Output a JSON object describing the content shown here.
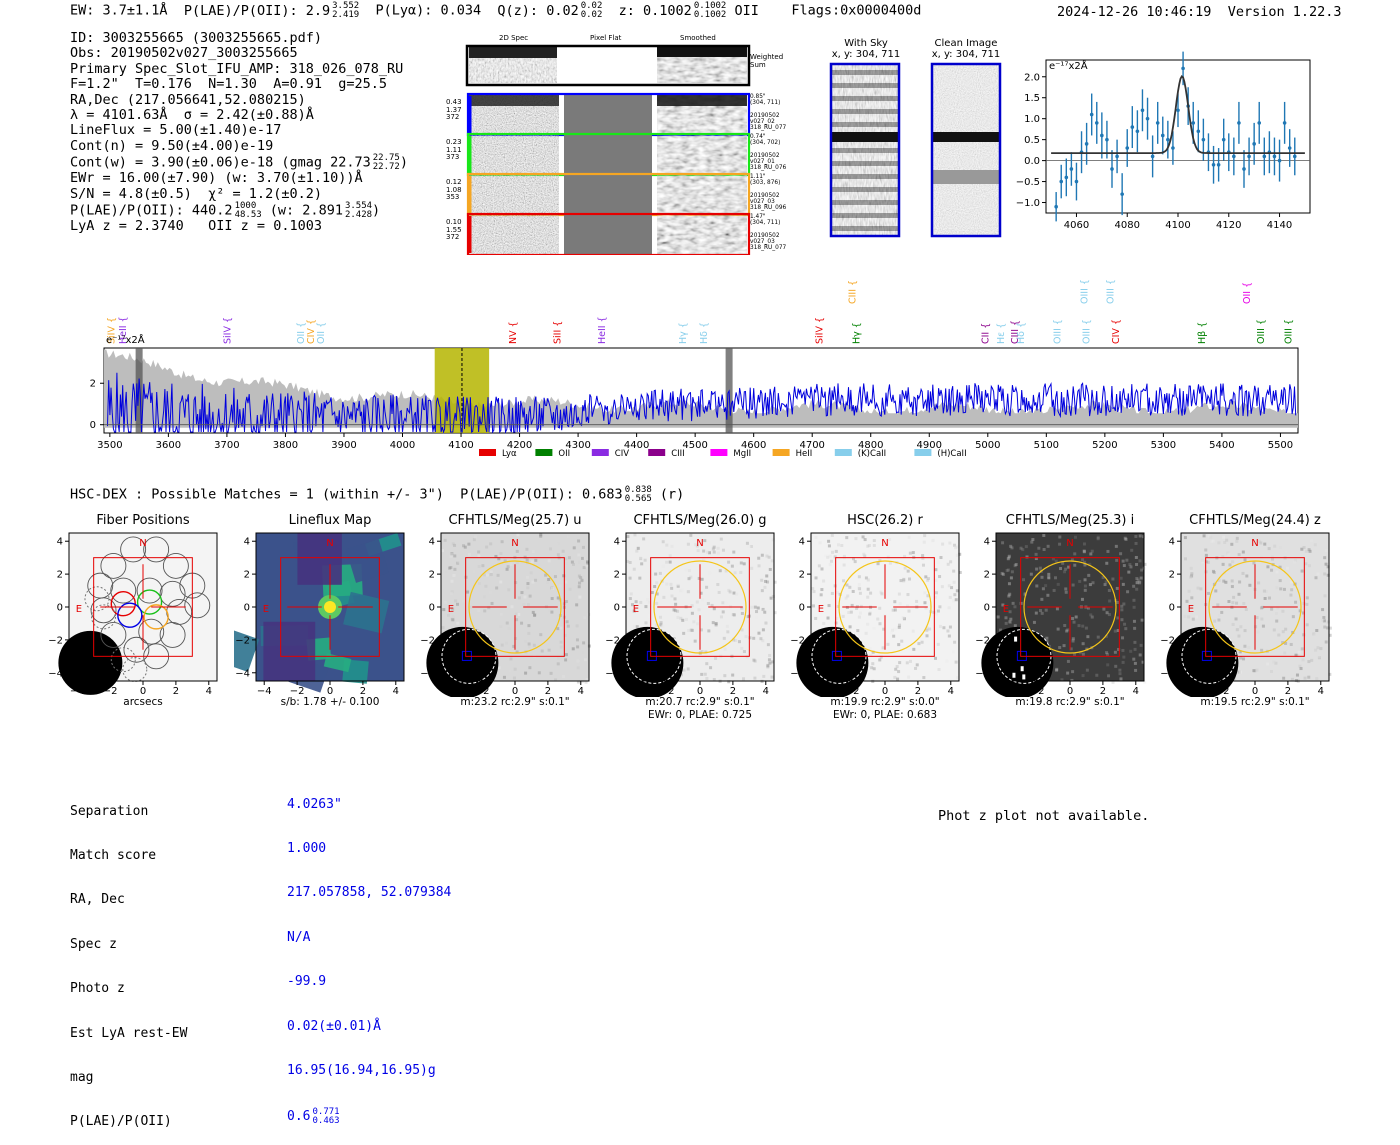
{
  "header": {
    "ew": "EW: 3.7±1.1Å",
    "plae_label": "P(LAE)/P(OII): 2.9",
    "plae_hi": "3.552",
    "plae_lo": "2.419",
    "plya": "P(Lyα): 0.034",
    "qz_label": "Q(z): 0.02",
    "qz_hi": "0.02",
    "qz_lo": "0.02",
    "z_label": "z: 0.1002",
    "z_hi": "0.1002",
    "z_lo": "0.1002",
    "z_line": "OII",
    "flags": "Flags:0x0000400d",
    "datetime": "2024-12-26 10:46:19",
    "version": "Version 1.22.3"
  },
  "info": {
    "id": "ID: 3003255665 (3003255665.pdf)",
    "obs": "Obs: 20190502v027_3003255665",
    "primary": "Primary Spec_Slot_IFU_AMP: 318_026_078_RU",
    "params": "F=1.2\"  T=0.176  N=1.30  A=0.91  g=25.5",
    "radec": "RA,Dec (217.056641,52.080215)",
    "lambda": "λ = 4101.63Å  σ = 2.42(±0.88)Å",
    "lineflux": "LineFlux = 5.00(±1.40)e-17",
    "contn": "Cont(n) = 9.50(±4.00)e-19",
    "contw": "Cont(w) = 3.90(±0.06)e-18 (gmag 22.73",
    "contw_hi": "22.75",
    "contw_lo": "22.72",
    "ewr": "EWr = 16.00(±7.90) (w: 3.70(±1.10))Å",
    "sn": "S/N = 4.8(±0.5)  χ² = 1.2(±0.2)",
    "plae": "P(LAE)/P(OII): 440.2",
    "plae_hi": "1000",
    "plae_lo": "48.53",
    "plae_w": "(w: 2.891",
    "plae_w_hi": "3.554",
    "plae_w_lo": "2.428",
    "lya": "LyA z = 2.3740   OII z = 0.1003"
  },
  "cutouts": {
    "col_headers": [
      "2D Spec",
      "Pixel Flat",
      "Smoothed"
    ],
    "weighted_sum": "Weighted\nSum",
    "rows": [
      {
        "left": "0.43\n1.37\n372",
        "right": "0.85\"\n(304, 711)\n\n20190502\nv027_02\n318_RU_077",
        "color": "#0000ff"
      },
      {
        "left": "0.23\n1.11\n373",
        "right": "0.74\"\n(304, 702)\n\n20190502\nv027_01\n318_RU_076",
        "color": "#19e619"
      },
      {
        "left": "0.12\n1.08\n353",
        "right": "1.11\"\n(303, 876)\n\n20190502\nv027_03\n318_RU_096",
        "color": "#f5a623"
      },
      {
        "left": "0.10\n1.55\n372",
        "right": "1.47\"\n(304, 711)\n\n20190502\nv027_03\n318_RU_077",
        "color": "#e60000"
      }
    ]
  },
  "ccd": {
    "with_sky": "With Sky",
    "clean": "Clean Image",
    "coord": "x, y: 304, 711"
  },
  "linefit": {
    "unit": "e⁻¹⁷x2Å",
    "x": [
      4052,
      4054,
      4056,
      4058,
      4060,
      4062,
      4064,
      4066,
      4068,
      4070,
      4072,
      4074,
      4076,
      4078,
      4080,
      4082,
      4084,
      4086,
      4088,
      4090,
      4092,
      4094,
      4096,
      4098,
      4100,
      4102,
      4104,
      4106,
      4108,
      4110,
      4112,
      4114,
      4116,
      4118,
      4120,
      4122,
      4124,
      4126,
      4128,
      4130,
      4132,
      4134,
      4136,
      4138,
      4140,
      4142,
      4144,
      4146
    ],
    "y": [
      -1.1,
      -0.5,
      -0.4,
      -0.2,
      -0.5,
      0.2,
      0.4,
      1.1,
      0.9,
      0.6,
      0.5,
      -0.2,
      0.1,
      -0.8,
      0.3,
      0.8,
      0.7,
      1.2,
      1.0,
      0.1,
      0.9,
      0.6,
      0.5,
      0.3,
      1.2,
      2.2,
      1.3,
      0.9,
      0.7,
      0.5,
      0.2,
      -0.1,
      -0.1,
      0.5,
      0.2,
      0.1,
      0.9,
      -0.2,
      0.1,
      0.4,
      0.9,
      0.1,
      0.2,
      0.1,
      0.0,
      0.9,
      0.3,
      0.1
    ],
    "err": [
      0.35,
      0.4,
      0.45,
      0.4,
      0.45,
      0.5,
      0.5,
      0.5,
      0.5,
      0.55,
      0.45,
      0.45,
      0.4,
      0.5,
      0.45,
      0.5,
      0.5,
      0.5,
      0.5,
      0.5,
      0.5,
      0.45,
      0.45,
      0.4,
      0.4,
      0.4,
      0.45,
      0.5,
      0.5,
      0.5,
      0.45,
      0.45,
      0.4,
      0.5,
      0.45,
      0.45,
      0.5,
      0.45,
      0.45,
      0.5,
      0.5,
      0.45,
      0.5,
      0.45,
      0.5,
      0.5,
      0.45,
      0.45
    ],
    "model": {
      "continuum": 0.18,
      "peak": 1.83,
      "center": 4101.6,
      "sigma": 2.42
    },
    "xlim": [
      4048,
      4152
    ],
    "ylim": [
      -1.25,
      2.4
    ],
    "xticks": [
      4060,
      4080,
      4100,
      4120,
      4140
    ],
    "yticks": [
      "2.0",
      "1.5",
      "1.0",
      "0.5",
      "0.0",
      "−0.5",
      "−1.0"
    ],
    "ytick_values": [
      2.0,
      1.5,
      1.0,
      0.5,
      0.0,
      -0.5,
      -1.0
    ]
  },
  "fullspec": {
    "unit": "e⁻¹⁷x2Å",
    "xlim": [
      3490,
      5530
    ],
    "ylim": [
      -0.4,
      3.7
    ],
    "xticks": [
      "3500",
      "3600",
      "3700",
      "3800",
      "3900",
      "4000",
      "4100",
      "4200",
      "4300",
      "4400",
      "4500",
      "4600",
      "4700",
      "4800",
      "4900",
      "5000",
      "5100",
      "5200",
      "5300",
      "5400",
      "5500"
    ],
    "xtick_values": [
      3500,
      3600,
      3700,
      3800,
      3900,
      4000,
      4100,
      4200,
      4300,
      4400,
      4500,
      4600,
      4700,
      4800,
      4900,
      5000,
      5100,
      5200,
      5300,
      5400,
      5500
    ],
    "yticks": [
      "2",
      "0"
    ],
    "ytick_values": [
      2,
      0
    ],
    "highlight_band": [
      4055,
      4148
    ],
    "highlight_line": 4101.6,
    "gray_bars": [
      3550,
      4558
    ],
    "line_markers": [
      {
        "label": "SiIV",
        "x": 3502,
        "color": "#f5a623",
        "row": 1
      },
      {
        "label": "HeII",
        "x": 3522,
        "color": "#8a2be2",
        "row": 1
      },
      {
        "label": "SiIV",
        "x": 3700,
        "color": "#8a2be2",
        "row": 1
      },
      {
        "label": "OII",
        "x": 3826,
        "color": "#87ceeb",
        "row": 1
      },
      {
        "label": "CIV",
        "x": 3843,
        "color": "#f5a623",
        "row": 1
      },
      {
        "label": "OII",
        "x": 3860,
        "color": "#87ceeb",
        "row": 1
      },
      {
        "label": "NV",
        "x": 4188,
        "color": "#e60000",
        "row": 1
      },
      {
        "label": "SiII",
        "x": 4264,
        "color": "#e60000",
        "row": 1
      },
      {
        "label": "HeII",
        "x": 4340,
        "color": "#8a2be2",
        "row": 1
      },
      {
        "label": "Hγ",
        "x": 4478,
        "color": "#87ceeb",
        "row": 1
      },
      {
        "label": "Hδ",
        "x": 4514,
        "color": "#87ceeb",
        "row": 1
      },
      {
        "label": "SiIV",
        "x": 4712,
        "color": "#e60000",
        "row": 1
      },
      {
        "label": "CIII",
        "x": 4768,
        "color": "#f5a623",
        "row": 0
      },
      {
        "label": "Hγ",
        "x": 4775,
        "color": "#008000",
        "row": 1
      },
      {
        "label": "CII",
        "x": 4995,
        "color": "#8b008b",
        "row": 1
      },
      {
        "label": "Hε",
        "x": 5022,
        "color": "#87ceeb",
        "row": 1
      },
      {
        "label": "CIII",
        "x": 5046,
        "color": "#8b008b",
        "row": 1
      },
      {
        "label": "Hδ",
        "x": 5056,
        "color": "#87ceeb",
        "row": 1
      },
      {
        "label": "OIII",
        "x": 5118,
        "color": "#87ceeb",
        "row": 1
      },
      {
        "label": "OIII",
        "x": 5164,
        "color": "#87ceeb",
        "row": 0
      },
      {
        "label": "OIII",
        "x": 5168,
        "color": "#87ceeb",
        "row": 1
      },
      {
        "label": "OIII",
        "x": 5209,
        "color": "#87ceeb",
        "row": 0
      },
      {
        "label": "CIV",
        "x": 5218,
        "color": "#e60000",
        "row": 1
      },
      {
        "label": "Hβ",
        "x": 5365,
        "color": "#008000",
        "row": 1
      },
      {
        "label": "OII",
        "x": 5442,
        "color": "#e600e6",
        "row": 0
      },
      {
        "label": "OIII",
        "x": 5466,
        "color": "#008000",
        "row": 1
      },
      {
        "label": "OIII",
        "x": 5513,
        "color": "#008000",
        "row": 1
      }
    ],
    "legend": [
      {
        "label": "Lyα",
        "color": "#e60000"
      },
      {
        "label": "OII",
        "color": "#008000"
      },
      {
        "label": "CIV",
        "color": "#8a2be2"
      },
      {
        "label": "CIII",
        "color": "#8b008b"
      },
      {
        "label": "MgII",
        "color": "#ff00ff"
      },
      {
        "label": "HeII",
        "color": "#f5a623"
      },
      {
        "label": "(K)CaII",
        "color": "#87ceeb"
      },
      {
        "label": "(H)CaII",
        "color": "#87ceeb"
      }
    ]
  },
  "hsc": {
    "title_main": "HSC-DEX : Possible Matches = 1 (within +/- 3\")  P(LAE)/P(OII): 0.683",
    "title_hi": "0.838",
    "title_lo": "0.565",
    "title_band": "(r)",
    "panels": [
      {
        "title": "Fiber Positions",
        "cap1": "arcsecs",
        "cap2": ""
      },
      {
        "title": "Lineflux Map",
        "cap1": "s/b: 1.78 +/- 0.100",
        "cap2": ""
      },
      {
        "title": "CFHTLS/Meg(25.7) u",
        "cap1": "m:23.2 rc:2.9\"  s:0.1\"",
        "cap2": ""
      },
      {
        "title": "CFHTLS/Meg(26.0) g",
        "cap1": "m:20.7 rc:2.9\"  s:0.1\"",
        "cap2": "EWr: 0, PLAE: 0.725"
      },
      {
        "title": "HSC(26.2) r",
        "cap1": "m:19.9 rc:2.9\"  s:0.0\"",
        "cap2": "EWr: 0, PLAE: 0.683"
      },
      {
        "title": "CFHTLS/Meg(25.3) i",
        "cap1": "m:19.8 rc:2.9\"  s:0.1\"",
        "cap2": ""
      },
      {
        "title": "CFHTLS/Meg(24.4) z",
        "cap1": "m:19.5 rc:2.9\"  s:0.1\"",
        "cap2": ""
      }
    ],
    "axis_ticks": [
      "−4",
      "−2",
      "0",
      "2",
      "4"
    ],
    "axis_values": [
      -4,
      -2,
      0,
      2,
      4
    ],
    "n_label": "N",
    "e_label": "E"
  },
  "match": {
    "labels": [
      "Separation",
      "Match score",
      "RA, Dec",
      "Spec z",
      "Photo z",
      "Est LyA rest-EW",
      "mag",
      "P(LAE)/P(OII)"
    ],
    "values": [
      "4.0263\"",
      "1.000",
      "217.057858, 52.079384",
      "N/A",
      "-99.9",
      "0.02(±0.01)Å",
      "16.95(16.94,16.95)g",
      "0.6"
    ],
    "plae_hi": "0.771",
    "plae_lo": "0.463"
  },
  "photz_msg": "Phot z plot not available."
}
